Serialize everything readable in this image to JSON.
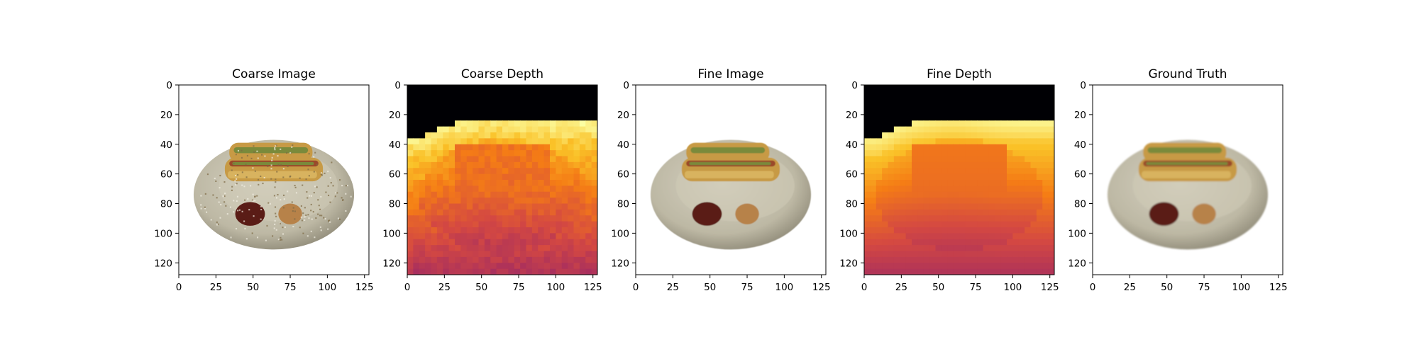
{
  "chart_data": [
    {
      "type": "heatmap",
      "title": "Coarse Image",
      "content": "rgb-image",
      "image_size": [
        128,
        128
      ],
      "xlim": [
        0,
        128
      ],
      "ylim": [
        128,
        0
      ],
      "xticks": [
        0,
        25,
        50,
        75,
        100,
        125
      ],
      "yticks": [
        0,
        20,
        40,
        60,
        80,
        100,
        120
      ],
      "blur": 0.2,
      "speckle": true
    },
    {
      "type": "heatmap",
      "title": "Coarse Depth",
      "content": "depth-map",
      "colormap": "inferno",
      "image_size": [
        128,
        128
      ],
      "xlim": [
        0,
        128
      ],
      "ylim": [
        128,
        0
      ],
      "xticks": [
        0,
        25,
        50,
        75,
        100,
        125
      ],
      "yticks": [
        0,
        20,
        40,
        60,
        80,
        100,
        120
      ],
      "noisy": true
    },
    {
      "type": "heatmap",
      "title": "Fine Image",
      "content": "rgb-image",
      "image_size": [
        128,
        128
      ],
      "xlim": [
        0,
        128
      ],
      "ylim": [
        128,
        0
      ],
      "xticks": [
        0,
        25,
        50,
        75,
        100,
        125
      ],
      "yticks": [
        0,
        20,
        40,
        60,
        80,
        100,
        120
      ],
      "blur": 0.6,
      "speckle": false
    },
    {
      "type": "heatmap",
      "title": "Fine Depth",
      "content": "depth-map",
      "colormap": "inferno",
      "image_size": [
        128,
        128
      ],
      "xlim": [
        0,
        128
      ],
      "ylim": [
        128,
        0
      ],
      "xticks": [
        0,
        25,
        50,
        75,
        100,
        125
      ],
      "yticks": [
        0,
        20,
        40,
        60,
        80,
        100,
        120
      ],
      "noisy": false
    },
    {
      "type": "heatmap",
      "title": "Ground Truth",
      "content": "rgb-image",
      "image_size": [
        128,
        128
      ],
      "xlim": [
        0,
        128
      ],
      "ylim": [
        128,
        0
      ],
      "xticks": [
        0,
        25,
        50,
        75,
        100,
        125
      ],
      "yticks": [
        0,
        20,
        40,
        60,
        80,
        100,
        120
      ],
      "blur": 1.0,
      "speckle": false
    }
  ],
  "scene": {
    "subject": "two hot dogs on a plate with ketchup and mustard",
    "colors": {
      "background": "#ffffff",
      "plate": "#bdb8a4",
      "plate_rim": "#8c8775",
      "bun": "#c79a45",
      "bun_highlight": "#e0bd6a",
      "sausage": "#9a4a2c",
      "relish": "#7a8a3a",
      "ketchup": "#5a1a14",
      "mustard": "#b7824a",
      "depth_far": "#000004",
      "depth_near": "#fcffa4"
    }
  }
}
